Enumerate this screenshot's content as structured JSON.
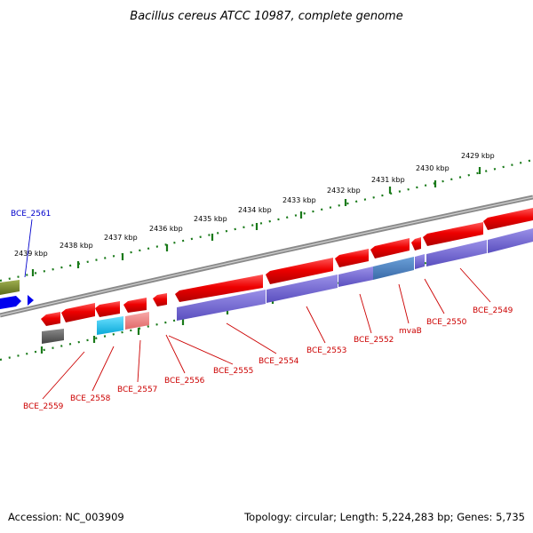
{
  "title": "Bacillus cereus ATCC 10987, complete genome",
  "footer": {
    "accession": "Accession: NC_003909",
    "summary": "Topology: circular; Length: 5,224,283 bp; Genes: 5,735"
  },
  "scale_labels": [
    "2439 kbp",
    "2438 kbp",
    "2437 kbp",
    "2436 kbp",
    "2435 kbp",
    "2434 kbp",
    "2433 kbp",
    "2432 kbp",
    "2431 kbp",
    "2430 kbp",
    "2429 kbp"
  ],
  "gene_labels": [
    {
      "text": "BCE_2561",
      "color": "#0000cc"
    },
    {
      "text": "BCE_2559",
      "color": "#cc0000"
    },
    {
      "text": "BCE_2558",
      "color": "#cc0000"
    },
    {
      "text": "BCE_2557",
      "color": "#cc0000"
    },
    {
      "text": "BCE_2556",
      "color": "#cc0000"
    },
    {
      "text": "BCE_2555",
      "color": "#cc0000"
    },
    {
      "text": "BCE_2554",
      "color": "#cc0000"
    },
    {
      "text": "BCE_2553",
      "color": "#cc0000"
    },
    {
      "text": "BCE_2552",
      "color": "#cc0000"
    },
    {
      "text": "mvaB",
      "color": "#cc0000"
    },
    {
      "text": "BCE_2550",
      "color": "#cc0000"
    },
    {
      "text": "BCE_2549",
      "color": "#cc0000"
    }
  ],
  "colors": {
    "forward_cds": "#ee0000",
    "reverse_cds": "#0000ee",
    "forward_feature": "#7a8a2a",
    "feature_block": "#6a5fcc",
    "cyan_block": "#1ac6f0",
    "pink_block": "#f08080",
    "gray_block": "#666666",
    "tick_green": "#1a7a1a",
    "backbone": "#8a8a8a"
  }
}
